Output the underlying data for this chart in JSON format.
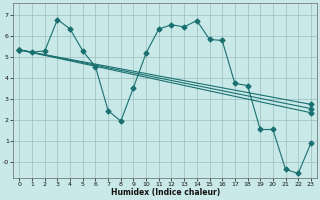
{
  "xlabel": "Humidex (Indice chaleur)",
  "bg_color": "#c9e8e8",
  "grid_color": "#9bbebe",
  "line_color": "#1a7070",
  "xlim": [
    -0.5,
    23.5
  ],
  "ylim": [
    -0.75,
    7.6
  ],
  "xticks": [
    0,
    1,
    2,
    3,
    4,
    5,
    6,
    7,
    8,
    9,
    10,
    11,
    12,
    13,
    14,
    15,
    16,
    17,
    18,
    19,
    20,
    21,
    22,
    23
  ],
  "yticks": [
    0,
    1,
    2,
    3,
    4,
    5,
    6,
    7
  ],
  "ytick_labels": [
    "-0",
    "1",
    "2",
    "3",
    "4",
    "5",
    "6",
    "7"
  ],
  "line1_x": [
    0,
    1,
    2,
    3,
    4,
    5,
    6,
    7,
    8,
    9,
    10,
    11,
    12,
    13,
    14,
    15,
    16,
    17,
    18,
    19,
    20,
    21,
    22,
    23
  ],
  "line1_y": [
    5.35,
    5.25,
    5.3,
    6.8,
    6.35,
    5.3,
    4.55,
    2.45,
    1.95,
    3.55,
    5.2,
    6.35,
    6.55,
    6.45,
    6.75,
    5.85,
    5.8,
    3.75,
    3.65,
    1.55,
    1.55,
    -0.35,
    -0.55,
    0.9
  ],
  "line2_x": [
    0,
    23
  ],
  "line2_y": [
    5.35,
    2.75
  ],
  "line3_x": [
    0,
    23
  ],
  "line3_y": [
    5.35,
    2.55
  ],
  "line4_x": [
    0,
    23
  ],
  "line4_y": [
    5.35,
    2.35
  ],
  "marker": "D",
  "markersize": 2.5,
  "linewidth": 0.8,
  "tick_fontsize": 4.5,
  "xlabel_fontsize": 5.5
}
